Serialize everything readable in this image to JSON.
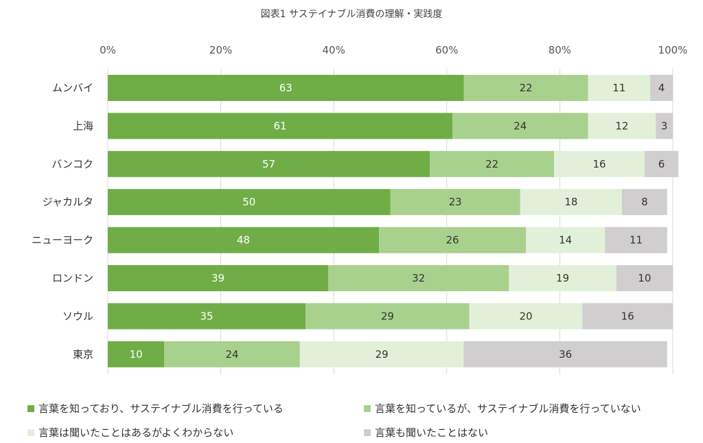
{
  "chart_data": {
    "type": "bar",
    "orientation": "horizontal",
    "stacked": true,
    "title": "図表1 サステイナブル消費の理解・実践度",
    "xlim": [
      0,
      100
    ],
    "x_ticks": [
      "0%",
      "20%",
      "40%",
      "60%",
      "80%",
      "100%"
    ],
    "grid": true,
    "legend_position": "bottom",
    "categories": [
      "ムンバイ",
      "上海",
      "バンコク",
      "ジャカルタ",
      "ニューヨーク",
      "ロンドン",
      "ソウル",
      "東京"
    ],
    "series": [
      {
        "name": "言葉を知っており、サステイナブル消費を行っている",
        "color": "#70ad47",
        "label_color": "#ffffff",
        "values": [
          63,
          61,
          57,
          50,
          48,
          39,
          35,
          10
        ]
      },
      {
        "name": "言葉を知っているが、サステイナブル消費を行っていない",
        "color": "#a9d18e",
        "label_color": "#333333",
        "values": [
          22,
          24,
          22,
          23,
          26,
          32,
          29,
          24
        ]
      },
      {
        "name": "言葉は聞いたことはあるがよくわからない",
        "color": "#e2f0d9",
        "label_color": "#333333",
        "values": [
          11,
          12,
          16,
          18,
          14,
          19,
          20,
          29
        ]
      },
      {
        "name": "言葉も聞いたことはない",
        "color": "#d0cece",
        "label_color": "#333333",
        "values": [
          4,
          3,
          6,
          8,
          11,
          10,
          16,
          36
        ]
      }
    ]
  }
}
